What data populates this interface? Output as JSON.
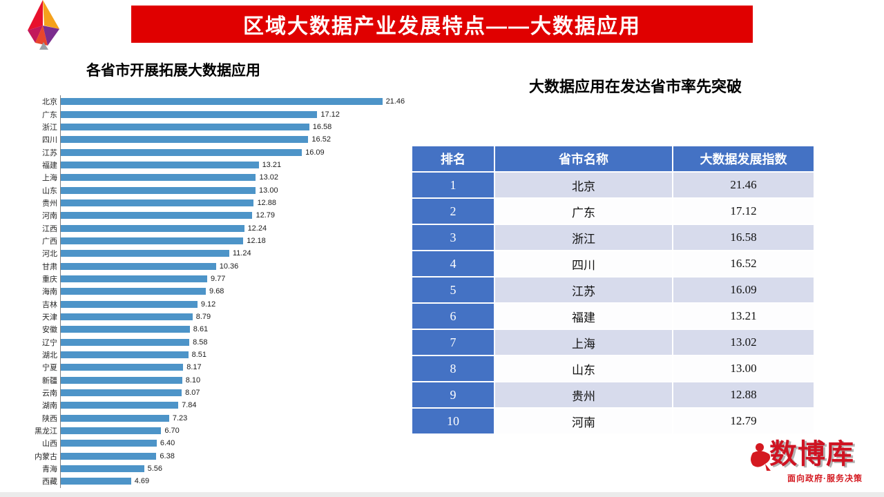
{
  "slide": {
    "title": "区域大数据产业发展特点——大数据应用"
  },
  "colors": {
    "accent_red": "#e00000",
    "table_header_blue": "#4472c4",
    "table_stripe": "#d7dbec",
    "bar_blue": "#4d94c8"
  },
  "footer_logo": {
    "name": "数博库",
    "tagline": "面向政府·服务决策"
  },
  "chart_data": [
    {
      "type": "bar",
      "orientation": "horizontal",
      "title": "各省市开展拓展大数据应用",
      "categories": [
        "北京",
        "广东",
        "浙江",
        "四川",
        "江苏",
        "福建",
        "上海",
        "山东",
        "贵州",
        "河南",
        "江西",
        "广西",
        "河北",
        "甘肃",
        "重庆",
        "海南",
        "吉林",
        "天津",
        "安徽",
        "辽宁",
        "湖北",
        "宁夏",
        "新疆",
        "云南",
        "湖南",
        "陕西",
        "黑龙江",
        "山西",
        "内蒙古",
        "青海",
        "西藏"
      ],
      "values": [
        21.46,
        17.12,
        16.58,
        16.52,
        16.09,
        13.21,
        13.02,
        13.0,
        12.88,
        12.79,
        12.24,
        12.18,
        11.24,
        10.36,
        9.77,
        9.68,
        9.12,
        8.79,
        8.61,
        8.58,
        8.51,
        8.17,
        8.1,
        8.07,
        7.84,
        7.23,
        6.7,
        6.4,
        6.38,
        5.56,
        4.69
      ],
      "xlim": [
        0,
        23
      ],
      "bar_color": "#4d94c8",
      "value_labels": true,
      "grid": false,
      "legend": false
    },
    {
      "type": "table",
      "title": "大数据应用在发达省市率先突破",
      "columns": [
        "排名",
        "省市名称",
        "大数据发展指数"
      ],
      "rows": [
        [
          "1",
          "北京",
          "21.46"
        ],
        [
          "2",
          "广东",
          "17.12"
        ],
        [
          "3",
          "浙江",
          "16.58"
        ],
        [
          "4",
          "四川",
          "16.52"
        ],
        [
          "5",
          "江苏",
          "16.09"
        ],
        [
          "6",
          "福建",
          "13.21"
        ],
        [
          "7",
          "上海",
          "13.02"
        ],
        [
          "8",
          "山东",
          "13.00"
        ],
        [
          "9",
          "贵州",
          "12.88"
        ],
        [
          "10",
          "河南",
          "12.79"
        ]
      ]
    }
  ]
}
